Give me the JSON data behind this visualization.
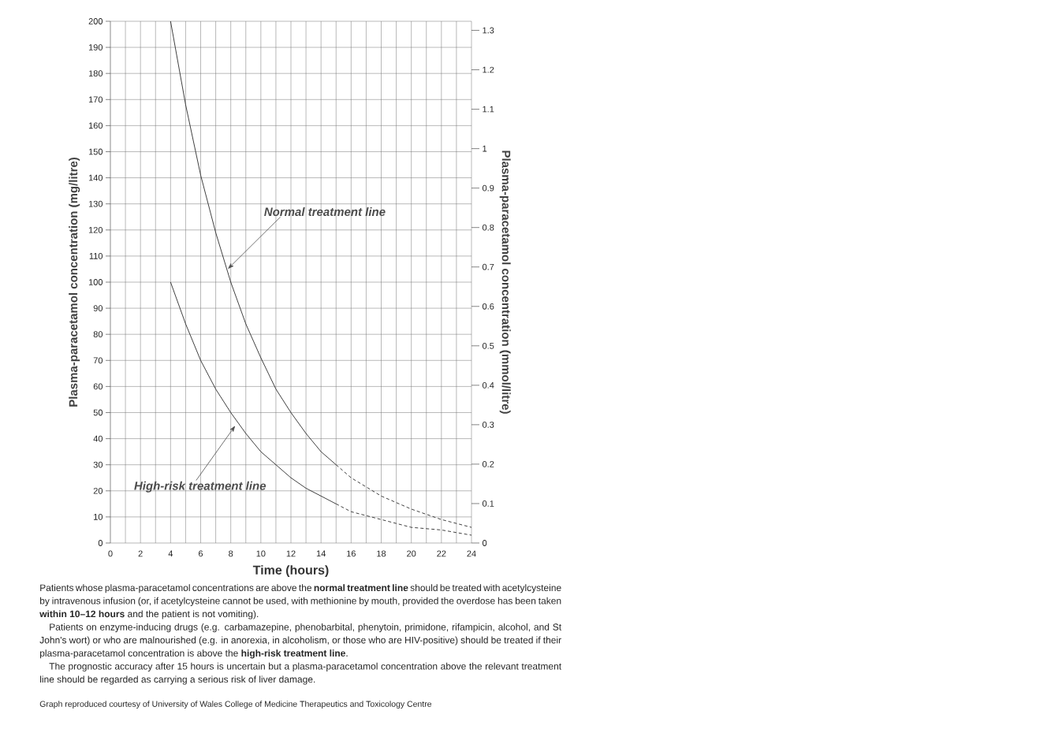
{
  "chart_data": {
    "type": "line",
    "xlabel": "Time (hours)",
    "ylabel": "Plasma-paracetamol concentration (mg/litre)",
    "y2label": "Plasma-paracetamol concentration (mmol/litre)",
    "series": [
      {
        "color": "#2a2a2a",
        "line_style": "solid",
        "x": [
          4,
          5,
          6,
          7,
          8,
          9,
          10,
          11,
          12,
          13,
          14,
          15
        ],
        "values": [
          200,
          168,
          141,
          119,
          100,
          84,
          71,
          59,
          50,
          42,
          35,
          30
        ]
      },
      {
        "color": "#2a2a2a",
        "line_style": "dashed",
        "x": [
          15,
          16,
          18,
          20,
          22,
          24
        ],
        "values": [
          30,
          25,
          18,
          13,
          9,
          6
        ]
      },
      {
        "color": "#2a2a2a",
        "line_style": "solid",
        "x": [
          4,
          5,
          6,
          7,
          8,
          9,
          10,
          11,
          12,
          13,
          14,
          15
        ],
        "values": [
          100,
          84,
          70,
          59,
          50,
          42,
          35,
          30,
          25,
          21,
          18,
          15
        ]
      },
      {
        "color": "#2a2a2a",
        "line_style": "dashed",
        "x": [
          15,
          16,
          18,
          20,
          22,
          24
        ],
        "values": [
          15,
          12,
          9,
          6,
          5,
          3
        ]
      }
    ],
    "xlim": [
      0,
      24
    ],
    "xticks": [
      0,
      {
        "value": 1,
        "label": null
      },
      2,
      {
        "value": 3,
        "label": null
      },
      4,
      {
        "value": 5,
        "label": null
      },
      6,
      {
        "value": 7,
        "label": null
      },
      8,
      {
        "value": 9,
        "label": null
      },
      10,
      {
        "value": 11,
        "label": null
      },
      12,
      {
        "value": 13,
        "label": null
      },
      14,
      {
        "value": 15,
        "label": null
      },
      16,
      {
        "value": 17,
        "label": null
      },
      18,
      {
        "value": 19,
        "label": null
      },
      20,
      {
        "value": 21,
        "label": null
      },
      22,
      {
        "value": 23,
        "label": null
      },
      24
    ],
    "ylim": [
      0,
      200
    ],
    "yticks": [
      0,
      10,
      20,
      30,
      40,
      50,
      60,
      70,
      80,
      90,
      100,
      110,
      120,
      130,
      140,
      150,
      160,
      170,
      180,
      190,
      200
    ],
    "y2lim": [
      0,
      1.323
    ],
    "y2ticks": [
      0,
      0.1,
      0.2,
      0.3,
      0.4,
      0.5,
      0.6,
      0.7,
      0.8,
      0.9,
      1,
      1.1,
      1.2,
      1.3
    ],
    "grid": true,
    "annotations": [
      {
        "text": "Normal treatment line",
        "x": 7.8,
        "y": 105
      },
      {
        "text": "High-risk treatment line",
        "x": 8.3,
        "y": 45
      },
      "Patients whose plasma-paracetamol concentrations are above the **normal treatment line** should be treated with acetylcysteine by intravenous infusion (or, if acetylcysteine cannot be used, with methionine by mouth, provided the overdose has been taken **within 10–12 hours** and the patient is not vomiting).",
      "Patients on enzyme-inducing drugs (e.g. carbamazepine, phenobarbital, phenytoin, primidone, rifampicin, alcohol, and St John's wort) or who are malnourished (e.g. in anorexia, in alcoholism, or those who are HIV-positive) should be treated if their plasma-paracetamol concentration is above the **high-risk treatment line**.",
      "The prognostic accuracy after 15 hours is uncertain but a plasma-paracetamol concentration above the relevant treatment line should be regarded as carrying a serious risk of liver damage.",
      "Graph reproduced courtesy of University of Wales College of Medicine Therapeutics and Toxicology Centre"
    ]
  }
}
